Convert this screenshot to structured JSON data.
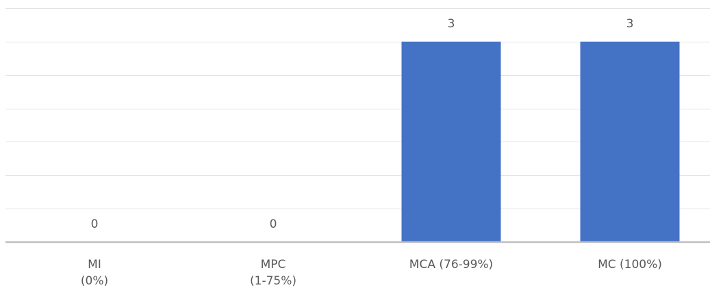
{
  "chart_data": {
    "type": "bar",
    "categories": [
      [
        "MI",
        "(0%)"
      ],
      [
        "MPC",
        "(1-75%)"
      ],
      [
        "MCA (76-99%)"
      ],
      [
        "MC (100%)"
      ]
    ],
    "values": [
      0,
      0,
      3,
      3
    ],
    "data_labels": [
      "0",
      "0",
      "3",
      "3"
    ],
    "ylim": [
      0,
      3.5
    ],
    "grid": true,
    "legend": "none",
    "title": "",
    "xlabel": "",
    "ylabel": "",
    "colors": {
      "bar": "#4472c4",
      "gridline": "#e3e3e3",
      "axis": "#bfbfbf",
      "text": "#595959"
    }
  }
}
